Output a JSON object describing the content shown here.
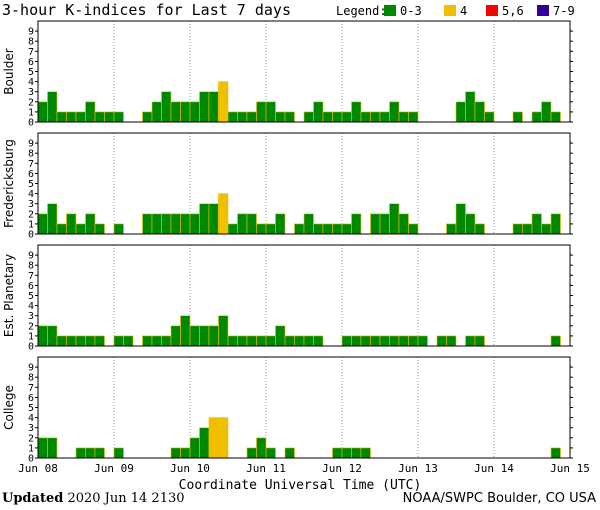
{
  "chart_data": {
    "type": "bar",
    "title": "3-hour K-indices for Last 7 days",
    "legend": {
      "label": "Legend:",
      "placement": "top-right",
      "entries": [
        {
          "label": "0-3",
          "color": "#008800"
        },
        {
          "label": "4",
          "color": "#f0c000"
        },
        {
          "label": "5,6",
          "color": "#ff0000"
        },
        {
          "label": "7-9",
          "color": "#330099"
        }
      ]
    },
    "xlabel": "Coordinate Universal Time (UTC)",
    "x_ticks": [
      "Jun 08",
      "Jun 09",
      "Jun 10",
      "Jun 11",
      "Jun 12",
      "Jun 13",
      "Jun 14",
      "Jun 15"
    ],
    "y_ticks": [
      "0",
      "1",
      "2",
      "3",
      "4",
      "5",
      "6",
      "7",
      "8",
      "9"
    ],
    "ylim": [
      0,
      9
    ],
    "intervals_per_day": 8,
    "series": [
      {
        "name": "Boulder",
        "values": [
          2,
          3,
          1,
          1,
          1,
          2,
          1,
          1,
          1,
          0,
          0,
          1,
          2,
          3,
          2,
          2,
          2,
          3,
          3,
          4,
          1,
          1,
          1,
          2,
          2,
          1,
          1,
          0,
          1,
          2,
          1,
          1,
          1,
          2,
          1,
          1,
          1,
          2,
          1,
          1,
          0,
          0,
          0,
          0,
          2,
          3,
          2,
          1,
          0,
          0,
          1,
          0,
          1,
          2,
          1,
          0
        ]
      },
      {
        "name": "Fredericksburg",
        "values": [
          2,
          3,
          1,
          2,
          1,
          2,
          1,
          0,
          1,
          0,
          0,
          2,
          2,
          2,
          2,
          2,
          2,
          3,
          3,
          4,
          1,
          2,
          2,
          1,
          1,
          2,
          0,
          1,
          2,
          1,
          1,
          1,
          1,
          2,
          0,
          2,
          2,
          3,
          2,
          1,
          0,
          0,
          0,
          1,
          3,
          2,
          1,
          0,
          0,
          0,
          1,
          1,
          2,
          1,
          2,
          0
        ]
      },
      {
        "name": "Est. Planetary",
        "values": [
          2,
          2,
          1,
          1,
          1,
          1,
          1,
          0,
          1,
          1,
          0,
          1,
          1,
          1,
          2,
          3,
          2,
          2,
          2,
          3,
          1,
          1,
          1,
          1,
          1,
          2,
          1,
          1,
          1,
          1,
          0,
          0,
          1,
          1,
          1,
          1,
          1,
          1,
          1,
          1,
          1,
          0,
          1,
          1,
          0,
          1,
          1,
          0,
          0,
          0,
          0,
          0,
          0,
          0,
          1,
          0
        ]
      },
      {
        "name": "College",
        "values": [
          2,
          2,
          0,
          0,
          1,
          1,
          1,
          0,
          1,
          0,
          0,
          0,
          0,
          0,
          1,
          1,
          2,
          3,
          4,
          4,
          0,
          0,
          1,
          2,
          1,
          0,
          1,
          0,
          0,
          0,
          0,
          1,
          1,
          1,
          1,
          0,
          0,
          0,
          0,
          0,
          0,
          0,
          0,
          0,
          0,
          0,
          0,
          0,
          0,
          0,
          0,
          0,
          0,
          0,
          1,
          0
        ]
      }
    ]
  },
  "footer": {
    "updated_label": "Updated",
    "updated_value": "2020 Jun 14 2130",
    "source": "NOAA/SWPC Boulder, CO USA"
  },
  "colors": {
    "k_0_3": "#008800",
    "k_4": "#f0c000",
    "k_5_6": "#ff0000",
    "k_7_9": "#330099",
    "grid": "#999999",
    "bar_outline": "#f0c000"
  }
}
